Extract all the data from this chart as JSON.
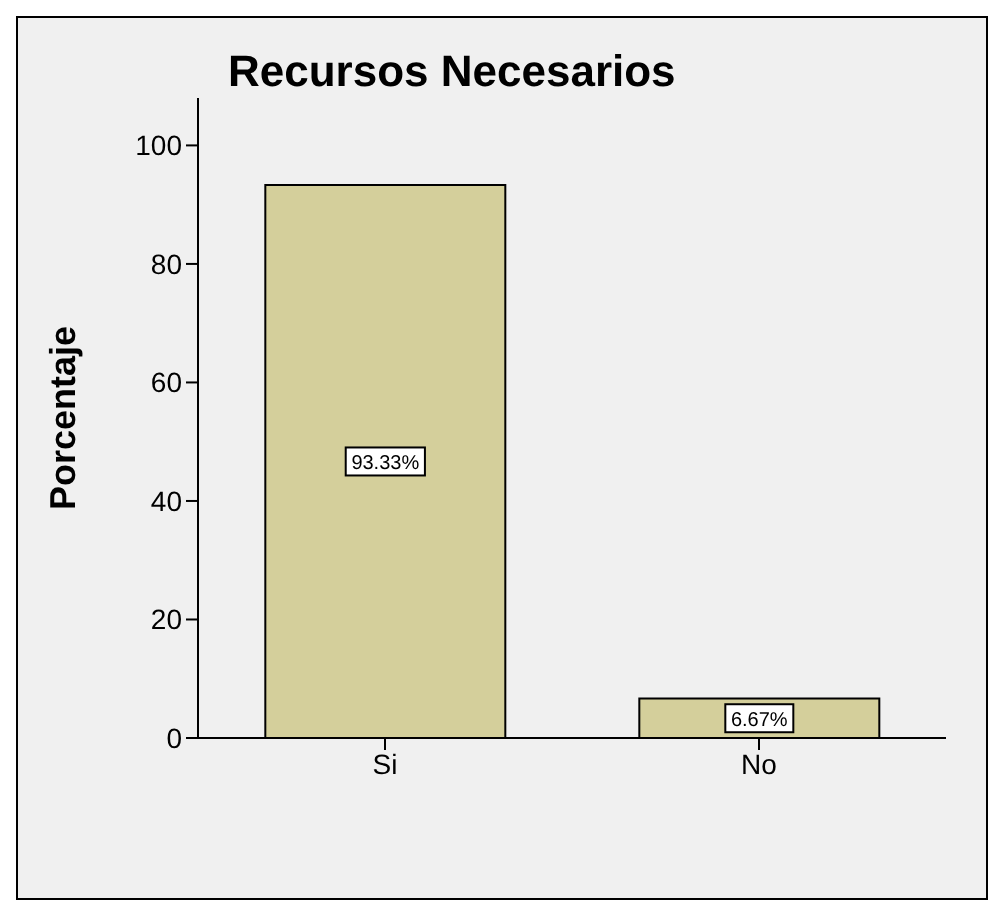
{
  "chart_data": {
    "type": "bar",
    "title": "Recursos Necesarios",
    "ylabel": "Porcentaje",
    "categories": [
      "Si",
      "No"
    ],
    "values": [
      93.33,
      6.67
    ],
    "value_labels": [
      "93.33%",
      "6.67%"
    ],
    "color": "#d4cf9b",
    "ylim": [
      0,
      108
    ],
    "yticks": [
      0,
      20,
      40,
      60,
      80,
      100
    ],
    "grid": false,
    "legend": false
  }
}
